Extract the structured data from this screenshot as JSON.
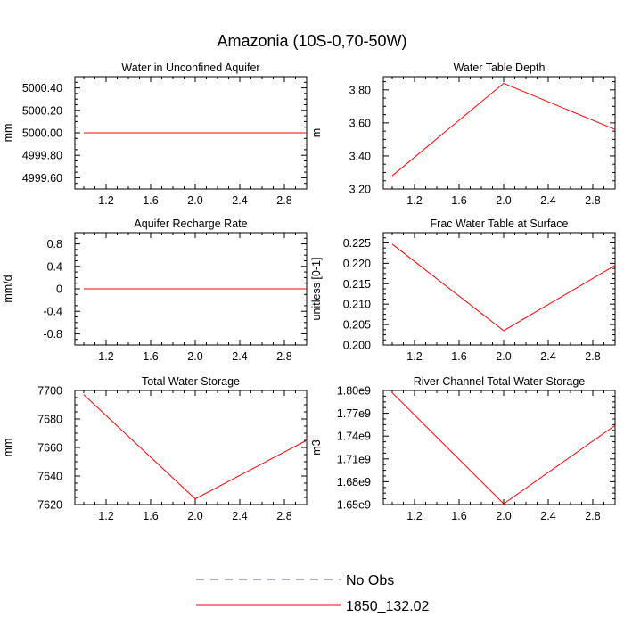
{
  "figure_title": "Amazonia (10S-0,70-50W)",
  "colors": {
    "series": "#ff0000",
    "no_obs": "#55557a",
    "axis": "#000000"
  },
  "legend": [
    {
      "label": "No Obs",
      "style": "dashed",
      "color": "#55557a"
    },
    {
      "label": "1850_132.02",
      "style": "solid",
      "color": "#ff0000"
    }
  ],
  "chart_data": [
    {
      "type": "line",
      "title": "Water in Unconfined Aquifer",
      "ylabel": "mm",
      "xlim": [
        0.92,
        3.0
      ],
      "ylim": [
        4999.5,
        5000.5
      ],
      "xticks": [
        1.2,
        1.6,
        2.0,
        2.4,
        2.8
      ],
      "xtick_labels": [
        "1.2",
        "1.6",
        "2.0",
        "2.4",
        "2.8"
      ],
      "yticks": [
        4999.6,
        4999.8,
        5000.0,
        5000.2,
        5000.4
      ],
      "ytick_labels": [
        "4999.60",
        "4999.80",
        "5000.00",
        "5000.20",
        "5000.40"
      ],
      "series": [
        {
          "name": "1850_132.02",
          "x": [
            1.0,
            2.0,
            3.0
          ],
          "y": [
            5000.0,
            5000.0,
            5000.0
          ]
        }
      ]
    },
    {
      "type": "line",
      "title": "Water Table Depth",
      "ylabel": "m",
      "xlim": [
        0.92,
        3.0
      ],
      "ylim": [
        3.2,
        3.88
      ],
      "xticks": [
        1.2,
        1.6,
        2.0,
        2.4,
        2.8
      ],
      "xtick_labels": [
        "1.2",
        "1.6",
        "2.0",
        "2.4",
        "2.8"
      ],
      "yticks": [
        3.2,
        3.4,
        3.6,
        3.8
      ],
      "ytick_labels": [
        "3.20",
        "3.40",
        "3.60",
        "3.80"
      ],
      "series": [
        {
          "name": "1850_132.02",
          "x": [
            1.0,
            2.0,
            3.0
          ],
          "y": [
            3.28,
            3.84,
            3.56
          ]
        }
      ]
    },
    {
      "type": "line",
      "title": "Aquifer Recharge Rate",
      "ylabel": "mm/d",
      "xlim": [
        0.92,
        3.0
      ],
      "ylim": [
        -1.0,
        1.0
      ],
      "xticks": [
        1.2,
        1.6,
        2.0,
        2.4,
        2.8
      ],
      "xtick_labels": [
        "1.2",
        "1.6",
        "2.0",
        "2.4",
        "2.8"
      ],
      "yticks": [
        -0.8,
        -0.4,
        0.0,
        0.4,
        0.8
      ],
      "ytick_labels": [
        "-0.8",
        "-0.4",
        "0",
        "0.4",
        "0.8"
      ],
      "series": [
        {
          "name": "1850_132.02",
          "x": [
            1.0,
            2.0,
            3.0
          ],
          "y": [
            0.0,
            0.0,
            0.0
          ]
        }
      ]
    },
    {
      "type": "line",
      "title": "Frac Water Table at Surface",
      "ylabel": "unitless [0-1]",
      "xlim": [
        0.92,
        3.0
      ],
      "ylim": [
        0.2,
        0.2275
      ],
      "xticks": [
        1.2,
        1.6,
        2.0,
        2.4,
        2.8
      ],
      "xtick_labels": [
        "1.2",
        "1.6",
        "2.0",
        "2.4",
        "2.8"
      ],
      "yticks": [
        0.2,
        0.205,
        0.21,
        0.215,
        0.22,
        0.225
      ],
      "ytick_labels": [
        "0.200",
        "0.205",
        "0.210",
        "0.215",
        "0.220",
        "0.225"
      ],
      "series": [
        {
          "name": "1850_132.02",
          "x": [
            1.0,
            2.0,
            3.0
          ],
          "y": [
            0.2247,
            0.2035,
            0.2195
          ]
        }
      ]
    },
    {
      "type": "line",
      "title": "Total Water Storage",
      "ylabel": "mm",
      "xlim": [
        0.92,
        3.0
      ],
      "ylim": [
        7620,
        7700
      ],
      "xticks": [
        1.2,
        1.6,
        2.0,
        2.4,
        2.8
      ],
      "xtick_labels": [
        "1.2",
        "1.6",
        "2.0",
        "2.4",
        "2.8"
      ],
      "yticks": [
        7620,
        7640,
        7660,
        7680,
        7700
      ],
      "ytick_labels": [
        "7620",
        "7640",
        "7660",
        "7680",
        "7700"
      ],
      "series": [
        {
          "name": "1850_132.02",
          "x": [
            1.0,
            2.0,
            3.0
          ],
          "y": [
            7697,
            7624,
            7665
          ]
        }
      ]
    },
    {
      "type": "line",
      "title": "River Channel Total Water Storage",
      "ylabel": "m3",
      "xlim": [
        0.92,
        3.0
      ],
      "ylim": [
        1650000000.0,
        1800000000.0
      ],
      "xticks": [
        1.2,
        1.6,
        2.0,
        2.4,
        2.8
      ],
      "xtick_labels": [
        "1.2",
        "1.6",
        "2.0",
        "2.4",
        "2.8"
      ],
      "yticks": [
        1650000000.0,
        1680000000.0,
        1710000000.0,
        1740000000.0,
        1770000000.0,
        1800000000.0
      ],
      "ytick_labels": [
        "1.65e9",
        "1.68e9",
        "1.71e9",
        "1.74e9",
        "1.77e9",
        "1.80e9"
      ],
      "series": [
        {
          "name": "1850_132.02",
          "x": [
            1.0,
            2.0,
            3.0
          ],
          "y": [
            1797000000.0,
            1651000000.0,
            1754000000.0
          ]
        }
      ]
    }
  ]
}
